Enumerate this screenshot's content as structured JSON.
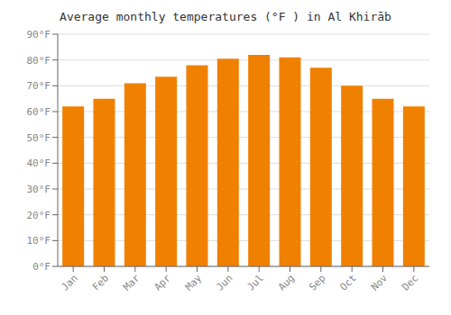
{
  "chart_data": {
    "type": "bar",
    "title": "Average monthly temperatures (°F ) in Al Khirāb",
    "categories": [
      "Jan",
      "Feb",
      "Mar",
      "Apr",
      "May",
      "Jun",
      "Jul",
      "Aug",
      "Sep",
      "Oct",
      "Nov",
      "Dec"
    ],
    "values": [
      62,
      65,
      71,
      73.5,
      78,
      80.5,
      82,
      81,
      77,
      70,
      65,
      62
    ],
    "color": "#F08000",
    "ylim": [
      0,
      90
    ],
    "yticks": [
      {
        "value": 0,
        "label": "0°F"
      },
      {
        "value": 10,
        "label": "10°F"
      },
      {
        "value": 20,
        "label": "20°F"
      },
      {
        "value": 30,
        "label": "30°F"
      },
      {
        "value": 40,
        "label": "40°F"
      },
      {
        "value": 50,
        "label": "50°F"
      },
      {
        "value": 60,
        "label": "60°F"
      },
      {
        "value": 70,
        "label": "70°F"
      },
      {
        "value": 80,
        "label": "80°F"
      },
      {
        "value": 90,
        "label": "90°F"
      }
    ],
    "grid": true
  }
}
